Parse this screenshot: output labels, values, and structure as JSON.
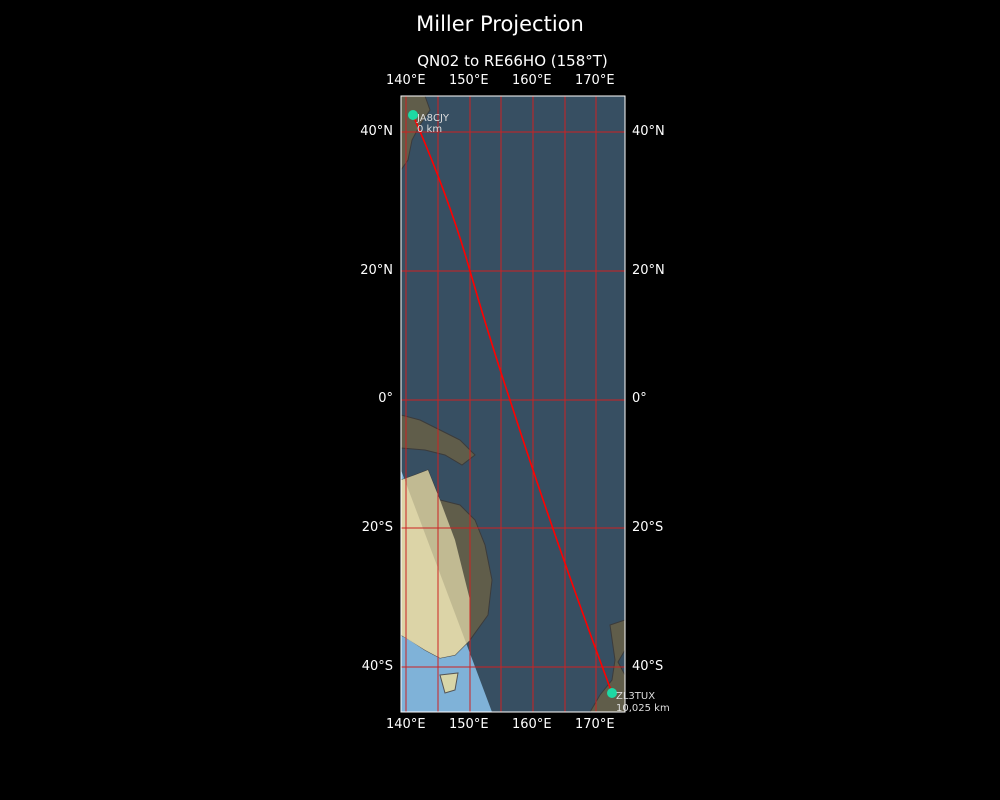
{
  "title": "Miller Projection",
  "subtitle": "QN02 to RE66HO (158°T)",
  "lon_ticks": [
    "140°E",
    "150°E",
    "160°E",
    "170°E"
  ],
  "lat_ticks": [
    "40°N",
    "20°N",
    "0°",
    "20°S",
    "40°S"
  ],
  "stations": [
    {
      "call": "JA8CJY",
      "distance": "0 km"
    },
    {
      "call": "ZL3TUX",
      "distance": "10,025 km"
    }
  ],
  "colors": {
    "path": "#ff0000",
    "marker": "#1ed9a4",
    "grid": "#cc2222",
    "ocean": "#3f5a70",
    "land": "#6e6a55",
    "day_land": "#e8e0b0",
    "day_ocean": "#7fb2d8"
  }
}
